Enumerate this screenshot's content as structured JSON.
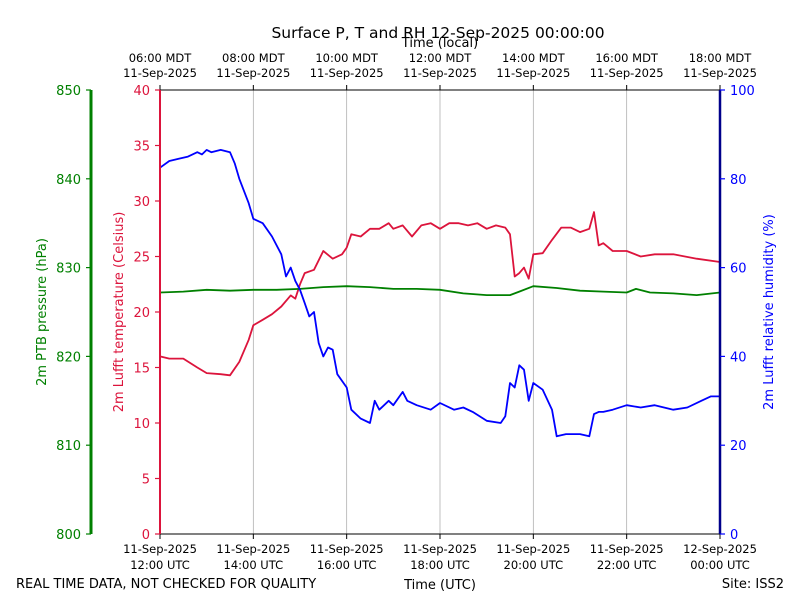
{
  "chart_data": {
    "type": "line",
    "title": "Surface P, T and RH 12-Sep-2025 00:00:00",
    "top_axis_label": "Time (local)",
    "xlabel": "Time (UTC)",
    "footer_left": "REAL TIME DATA, NOT CHECKED FOR QUALITY",
    "footer_right": "Site: ISS2",
    "x_range_hours_utc": [
      12,
      24
    ],
    "bottom_ticks": [
      {
        "h": 12,
        "line1": "11-Sep-2025",
        "line2": "12:00 UTC"
      },
      {
        "h": 14,
        "line1": "11-Sep-2025",
        "line2": "14:00 UTC"
      },
      {
        "h": 16,
        "line1": "11-Sep-2025",
        "line2": "16:00 UTC"
      },
      {
        "h": 18,
        "line1": "11-Sep-2025",
        "line2": "18:00 UTC"
      },
      {
        "h": 20,
        "line1": "11-Sep-2025",
        "line2": "20:00 UTC"
      },
      {
        "h": 22,
        "line1": "11-Sep-2025",
        "line2": "22:00 UTC"
      },
      {
        "h": 24,
        "line1": "12-Sep-2025",
        "line2": "00:00 UTC"
      }
    ],
    "top_ticks": [
      {
        "h": 12,
        "line1": "06:00 MDT",
        "line2": "11-Sep-2025"
      },
      {
        "h": 14,
        "line1": "08:00 MDT",
        "line2": "11-Sep-2025"
      },
      {
        "h": 16,
        "line1": "10:00 MDT",
        "line2": "11-Sep-2025"
      },
      {
        "h": 18,
        "line1": "12:00 MDT",
        "line2": "11-Sep-2025"
      },
      {
        "h": 20,
        "line1": "14:00 MDT",
        "line2": "11-Sep-2025"
      },
      {
        "h": 22,
        "line1": "16:00 MDT",
        "line2": "11-Sep-2025"
      },
      {
        "h": 24,
        "line1": "18:00 MDT",
        "line2": "11-Sep-2025"
      }
    ],
    "axes": {
      "pressure": {
        "label": "2m PTB pressure (hPa)",
        "ylim": [
          800,
          850
        ],
        "ticks": [
          800,
          810,
          820,
          830,
          840,
          850
        ],
        "color": "#008000"
      },
      "temperature": {
        "label": "2m Lufft temperature (Celsius)",
        "ylim": [
          0,
          40
        ],
        "ticks": [
          0,
          5,
          10,
          15,
          20,
          25,
          30,
          35,
          40
        ],
        "color": "#dc143c"
      },
      "humidity": {
        "label": "2m Lufft relative humidity (%)",
        "ylim": [
          0,
          100
        ],
        "ticks": [
          0,
          20,
          40,
          60,
          80,
          100
        ],
        "color": "#0000ff"
      }
    },
    "series": [
      {
        "name": "2m Lufft temperature",
        "axis": "temperature",
        "color": "#dc143c",
        "x": [
          12.0,
          12.2,
          12.5,
          12.8,
          13.0,
          13.3,
          13.5,
          13.7,
          13.9,
          14.0,
          14.2,
          14.4,
          14.6,
          14.8,
          14.9,
          15.0,
          15.1,
          15.3,
          15.5,
          15.7,
          15.9,
          16.0,
          16.1,
          16.3,
          16.5,
          16.7,
          16.9,
          17.0,
          17.2,
          17.4,
          17.6,
          17.8,
          18.0,
          18.2,
          18.4,
          18.6,
          18.8,
          19.0,
          19.2,
          19.4,
          19.5,
          19.6,
          19.7,
          19.8,
          19.9,
          20.0,
          20.2,
          20.4,
          20.6,
          20.8,
          21.0,
          21.2,
          21.3,
          21.4,
          21.5,
          21.7,
          22.0,
          22.3,
          22.6,
          23.0,
          23.5,
          24.0
        ],
        "values": [
          16.0,
          15.8,
          15.8,
          15.0,
          14.5,
          14.4,
          14.3,
          15.5,
          17.5,
          18.8,
          19.3,
          19.8,
          20.5,
          21.5,
          21.2,
          22.5,
          23.5,
          23.8,
          25.5,
          24.8,
          25.2,
          25.8,
          27.0,
          26.8,
          27.5,
          27.5,
          28.0,
          27.5,
          27.8,
          26.8,
          27.8,
          28.0,
          27.5,
          28.0,
          28.0,
          27.8,
          28.0,
          27.5,
          27.8,
          27.6,
          27.0,
          23.2,
          23.5,
          24.0,
          23.0,
          25.2,
          25.3,
          26.5,
          27.6,
          27.6,
          27.2,
          27.5,
          29.0,
          26.0,
          26.2,
          25.5,
          25.5,
          25.0,
          25.2,
          25.2,
          24.8,
          24.5
        ]
      },
      {
        "name": "2m PTB pressure",
        "axis": "pressure",
        "color": "#008000",
        "x": [
          12.0,
          12.5,
          13.0,
          13.5,
          14.0,
          14.5,
          15.0,
          15.5,
          16.0,
          16.5,
          17.0,
          17.5,
          18.0,
          18.5,
          19.0,
          19.5,
          19.7,
          20.0,
          20.5,
          21.0,
          21.5,
          22.0,
          22.2,
          22.5,
          23.0,
          23.5,
          24.0
        ],
        "values": [
          827.2,
          827.3,
          827.5,
          827.4,
          827.5,
          827.5,
          827.6,
          827.8,
          827.9,
          827.8,
          827.6,
          827.6,
          827.5,
          827.1,
          826.9,
          826.9,
          827.3,
          827.9,
          827.7,
          827.4,
          827.3,
          827.2,
          827.6,
          827.2,
          827.1,
          826.9,
          827.2
        ]
      },
      {
        "name": "2m Lufft relative humidity",
        "axis": "humidity",
        "color": "#0000ff",
        "x": [
          12.0,
          12.2,
          12.4,
          12.6,
          12.8,
          12.9,
          13.0,
          13.1,
          13.3,
          13.5,
          13.6,
          13.7,
          13.9,
          14.0,
          14.2,
          14.4,
          14.6,
          14.7,
          14.8,
          14.9,
          15.0,
          15.1,
          15.2,
          15.3,
          15.4,
          15.5,
          15.6,
          15.7,
          15.8,
          16.0,
          16.1,
          16.3,
          16.5,
          16.6,
          16.7,
          16.9,
          17.0,
          17.2,
          17.3,
          17.5,
          17.8,
          18.0,
          18.3,
          18.5,
          18.7,
          19.0,
          19.3,
          19.4,
          19.5,
          19.6,
          19.7,
          19.8,
          19.9,
          20.0,
          20.2,
          20.4,
          20.5,
          20.7,
          21.0,
          21.2,
          21.3,
          21.4,
          21.5,
          21.7,
          22.0,
          22.3,
          22.6,
          23.0,
          23.3,
          23.6,
          23.8,
          24.0
        ],
        "values": [
          82.5,
          84.0,
          84.5,
          85.0,
          86.0,
          85.5,
          86.5,
          86.0,
          86.5,
          86.0,
          83.5,
          80.0,
          74.5,
          71.0,
          70.0,
          67.0,
          63.0,
          58.0,
          60.0,
          57.0,
          55.0,
          52.0,
          49.0,
          50.0,
          43.0,
          40.0,
          42.0,
          41.5,
          36.0,
          33.0,
          28.0,
          26.0,
          25.0,
          30.0,
          28.0,
          30.0,
          29.0,
          32.0,
          30.0,
          29.0,
          28.0,
          29.5,
          28.0,
          28.5,
          27.5,
          25.5,
          25.0,
          26.5,
          34.0,
          33.0,
          38.0,
          37.0,
          30.0,
          34.0,
          32.5,
          28.0,
          22.0,
          22.5,
          22.5,
          22.0,
          27.0,
          27.5,
          27.5,
          28.0,
          29.0,
          28.5,
          29.0,
          28.0,
          28.5,
          30.0,
          31.0,
          31.0
        ]
      }
    ]
  }
}
